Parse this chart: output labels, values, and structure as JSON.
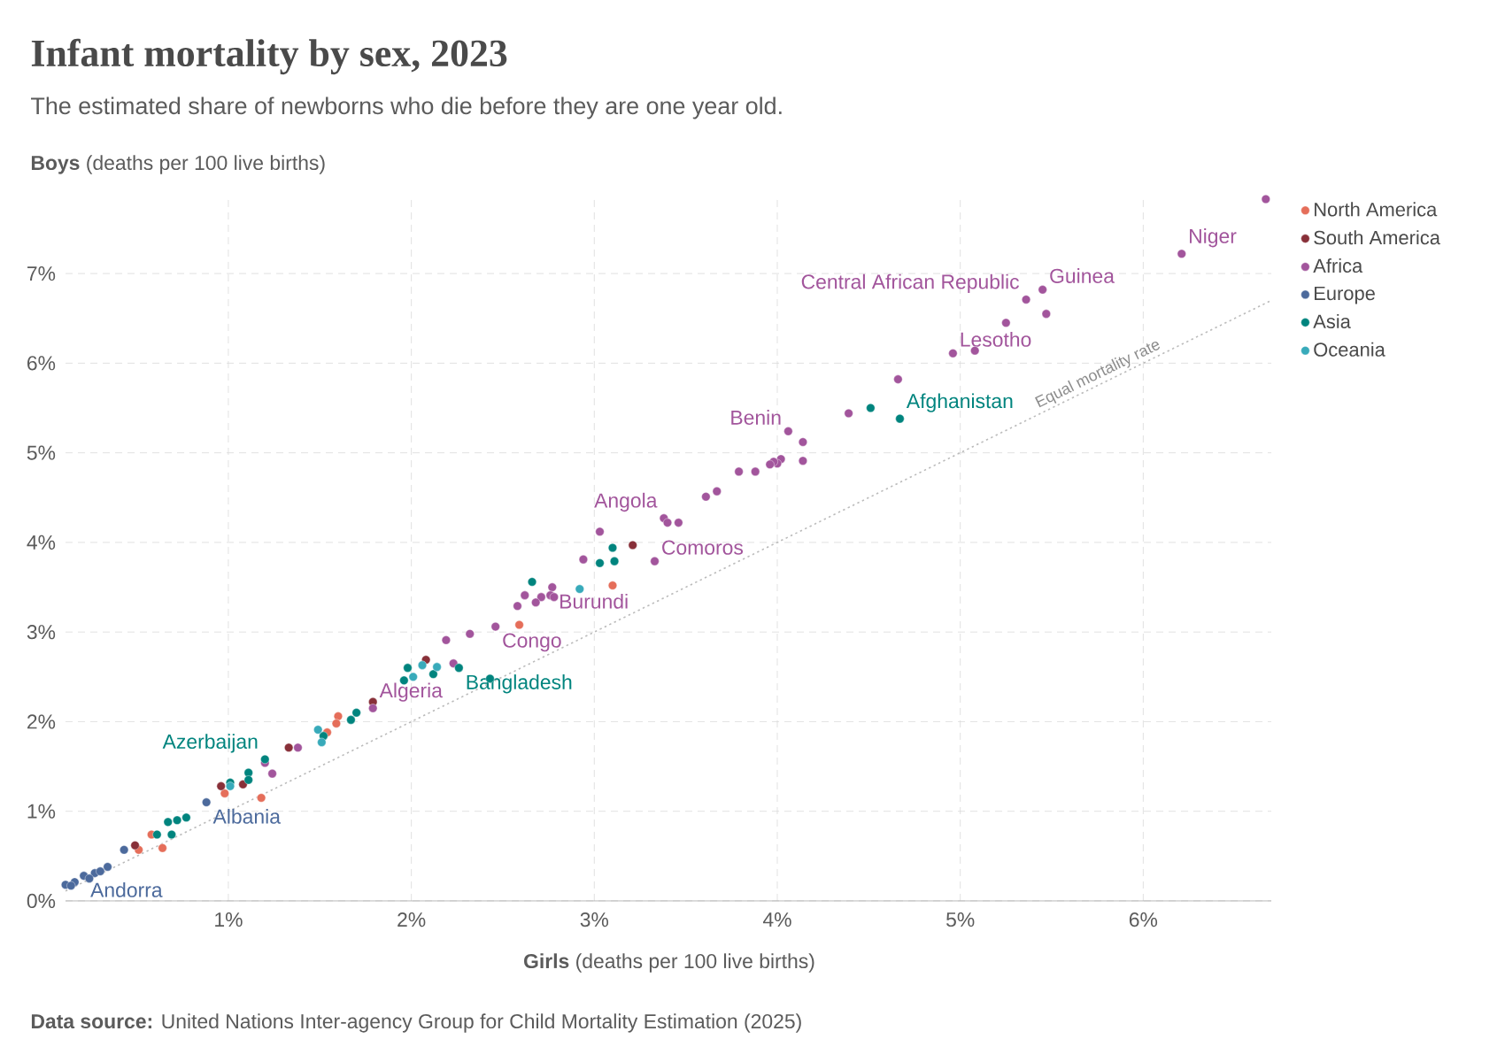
{
  "chart_data": {
    "type": "scatter",
    "title": "Infant mortality by sex, 2023",
    "subtitle": "The estimated share of newborns who die before they are one year old.",
    "xlabel": "**Girls** (deaths per 100 live births)",
    "ylabel": "**Boys** (deaths per 100 live births)",
    "xlim": [
      0.11,
      6.7
    ],
    "ylim": [
      0,
      7.88
    ],
    "xticks": [
      {
        "value": 1,
        "label": "1%"
      },
      {
        "value": 2,
        "label": "2%"
      },
      {
        "value": 3,
        "label": "3%"
      },
      {
        "value": 4,
        "label": "4%"
      },
      {
        "value": 5,
        "label": "5%"
      },
      {
        "value": 6,
        "label": "6%"
      }
    ],
    "yticks": [
      {
        "value": 0,
        "label": "0%"
      },
      {
        "value": 1,
        "label": "1%"
      },
      {
        "value": 2,
        "label": "2%"
      },
      {
        "value": 3,
        "label": "3%"
      },
      {
        "value": 4,
        "label": "4%"
      },
      {
        "value": 5,
        "label": "5%"
      },
      {
        "value": 6,
        "label": "6%"
      },
      {
        "value": 7,
        "label": "7%"
      }
    ],
    "grid": true,
    "legend": "right",
    "series": [
      {
        "name": "North America",
        "marker": "circle",
        "color": "#e56e5a",
        "x": [
          3.1,
          2.59,
          1.6,
          1.59,
          1.54,
          1.18,
          0.98,
          0.64,
          0.58,
          0.51
        ],
        "values": [
          3.52,
          3.08,
          2.06,
          1.98,
          1.88,
          1.15,
          1.2,
          0.59,
          0.74,
          0.57
        ]
      },
      {
        "name": "South America",
        "marker": "circle",
        "color": "#883039",
        "x": [
          3.21,
          2.08,
          1.79,
          1.33,
          0.96,
          0.49,
          1.08
        ],
        "values": [
          3.97,
          2.69,
          2.22,
          1.71,
          1.28,
          0.62,
          1.3
        ]
      },
      {
        "name": "Africa",
        "marker": "circle",
        "color": "#a2559c",
        "x": [
          6.67,
          6.21,
          5.45,
          5.36,
          5.47,
          5.25,
          4.96,
          5.08,
          4.66,
          4.39,
          4.06,
          4.14,
          4.14,
          4.02,
          4.0,
          3.98,
          3.96,
          3.88,
          3.79,
          3.67,
          3.61,
          3.38,
          3.4,
          3.46,
          3.03,
          3.33,
          2.94,
          2.77,
          2.62,
          2.71,
          2.76,
          2.78,
          2.68,
          2.58,
          2.46,
          2.32,
          2.19,
          2.23,
          1.79,
          1.38,
          1.2,
          1.24
        ],
        "values": [
          7.83,
          7.22,
          6.82,
          6.71,
          6.55,
          6.45,
          6.11,
          6.14,
          5.82,
          5.44,
          5.24,
          5.12,
          4.91,
          4.93,
          4.88,
          4.9,
          4.87,
          4.79,
          4.79,
          4.57,
          4.51,
          4.27,
          4.22,
          4.22,
          4.12,
          3.79,
          3.81,
          3.5,
          3.41,
          3.39,
          3.41,
          3.39,
          3.33,
          3.29,
          3.06,
          2.98,
          2.91,
          2.65,
          2.15,
          1.71,
          1.54,
          1.42
        ]
      },
      {
        "name": "Europe",
        "marker": "circle",
        "color": "#4c6a9c",
        "x": [
          0.88,
          0.43,
          0.34,
          0.27,
          0.21,
          0.16,
          0.11,
          0.24,
          0.3,
          0.14
        ],
        "values": [
          1.1,
          0.57,
          0.38,
          0.31,
          0.28,
          0.21,
          0.18,
          0.25,
          0.33,
          0.17
        ]
      },
      {
        "name": "Asia",
        "marker": "circle",
        "color": "#00847e",
        "x": [
          4.67,
          4.51,
          3.1,
          3.11,
          3.03,
          2.66,
          2.26,
          2.12,
          1.98,
          1.96,
          2.43,
          1.7,
          1.67,
          1.2,
          1.11,
          1.11,
          1.01,
          0.77,
          0.72,
          0.67,
          0.69,
          0.61,
          1.52
        ],
        "values": [
          5.38,
          5.5,
          3.94,
          3.79,
          3.77,
          3.56,
          2.6,
          2.53,
          2.6,
          2.46,
          2.48,
          2.1,
          2.02,
          1.58,
          1.43,
          1.35,
          1.32,
          0.93,
          0.9,
          0.88,
          0.74,
          0.74,
          1.84
        ]
      },
      {
        "name": "Oceania",
        "marker": "circle",
        "color": "#38aaba",
        "x": [
          2.92,
          2.06,
          2.14,
          2.01,
          1.49,
          1.51,
          1.01
        ],
        "values": [
          3.48,
          2.63,
          2.61,
          2.5,
          1.91,
          1.77,
          1.28
        ]
      },
      {
        "name": "Equal mortality rate",
        "type": "line",
        "marker": "none",
        "line_style": "dotted",
        "color": "#bbbbbb",
        "x": [
          0.11,
          6.7
        ],
        "values": [
          0.11,
          6.7
        ]
      }
    ],
    "annotations": [
      {
        "text": "Niger",
        "x": 6.21,
        "y": 7.22
      },
      {
        "text": "Guinea",
        "x": 5.45,
        "y": 6.82
      },
      {
        "text": "Central African Republic",
        "x": 5.36,
        "y": 6.71
      },
      {
        "text": "Lesotho",
        "x": 4.96,
        "y": 6.11
      },
      {
        "text": "Afghanistan",
        "x": 4.67,
        "y": 5.38
      },
      {
        "text": "Benin",
        "x": 4.06,
        "y": 5.24
      },
      {
        "text": "Angola",
        "x": 3.38,
        "y": 4.27
      },
      {
        "text": "Comoros",
        "x": 3.33,
        "y": 3.79
      },
      {
        "text": "Burundi",
        "x": 2.77,
        "y": 3.5
      },
      {
        "text": "Congo",
        "x": 2.46,
        "y": 3.06
      },
      {
        "text": "Bangladesh",
        "x": 2.26,
        "y": 2.6
      },
      {
        "text": "Algeria",
        "x": 1.79,
        "y": 2.15
      },
      {
        "text": "Azerbaijan",
        "x": 1.2,
        "y": 1.58
      },
      {
        "text": "Albania",
        "x": 0.88,
        "y": 1.1
      },
      {
        "text": "Andorra",
        "x": 0.21,
        "y": 0.28
      },
      "**Data source:** United Nations Inter-agency Group for Child Mortality Estimation (2025)"
    ]
  }
}
